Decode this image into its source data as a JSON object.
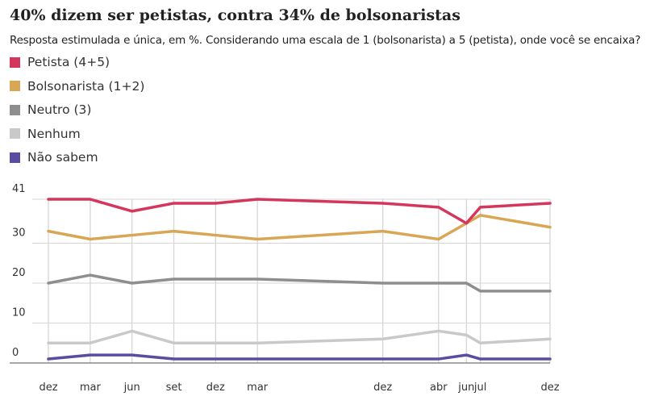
{
  "title": "40% dizem ser petistas, contra 34% de bolsonaristas",
  "subtitle": "Resposta estimulada e única, em %. Considerando uma escala de 1 (bolsonarista) a 5 (petista), onde você se encaixa?",
  "chart_data": {
    "type": "line",
    "title": "40% dizem ser petistas, contra 34% de bolsonaristas",
    "categories": [
      "dez",
      "mar",
      "jun",
      "set",
      "dez",
      "mar",
      "dez",
      "abr",
      "jun",
      "jul",
      "dez"
    ],
    "x_tick_labels": [
      "dez",
      "mar",
      "jun",
      "set",
      "dez",
      "mar",
      "dez",
      "abr",
      "jun",
      "jul",
      "dez"
    ],
    "y_tick_labels": [
      "41",
      "30",
      "20",
      "10",
      "0"
    ],
    "y_ticks": [
      41,
      30,
      20,
      10,
      0
    ],
    "ylim": [
      0,
      41
    ],
    "grid": true,
    "legend": "top-left",
    "series": [
      {
        "name": "Petista (4+5)",
        "color": "#d4375b",
        "values": [
          41,
          41,
          38,
          40,
          40,
          41,
          40,
          39,
          35,
          39,
          40
        ]
      },
      {
        "name": "Bolsonarista (1+2)",
        "color": "#d8a654",
        "values": [
          33,
          31,
          32,
          33,
          32,
          31,
          33,
          31,
          35,
          37,
          34
        ]
      },
      {
        "name": "Neutro (3)",
        "color": "#8e8e8e",
        "values": [
          20,
          22,
          20,
          21,
          21,
          21,
          20,
          20,
          20,
          18,
          18
        ]
      },
      {
        "name": "Nenhum",
        "color": "#c9c9c9",
        "values": [
          5,
          5,
          8,
          5,
          5,
          5,
          6,
          8,
          7,
          5,
          6
        ]
      },
      {
        "name": "Não sabem",
        "color": "#5c4ca1",
        "values": [
          1,
          2,
          2,
          1,
          1,
          1,
          1,
          1,
          2,
          1,
          1
        ]
      }
    ]
  }
}
